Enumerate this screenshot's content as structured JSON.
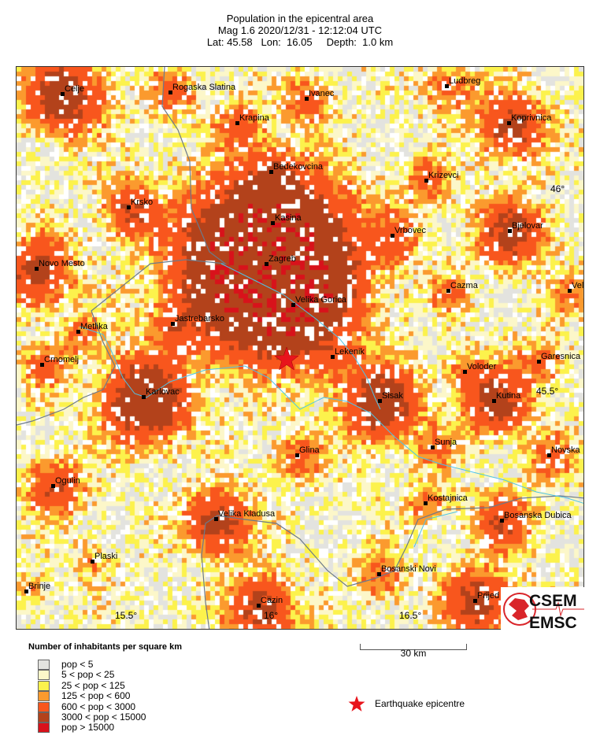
{
  "header": {
    "title": "Population in the epicentral area",
    "line2": "Mag 1.6  2020/12/31 - 12:12:04 UTC",
    "line3": "Lat: 45.58   Lon:  16.05     Depth:  1.0 km"
  },
  "map": {
    "cities": [
      "Celje",
      "Rogaska Slatina",
      "Ivanec",
      "Ludbreg",
      "Krapina",
      "Koprivnica",
      "Bedekovcina",
      "Krizevci",
      "Krsko",
      "Kasina",
      "Vrbovec",
      "Bjelovar",
      "Novo Mesto",
      "Zagreb",
      "Cazma",
      "Vel",
      "Velika Gorica",
      "Jastrebarsko",
      "Metlika",
      "Lekenik",
      "Crnomelj",
      "Garesnica",
      "Voloder",
      "Karlovac",
      "Kutina",
      "Sisak",
      "Sunja",
      "Novska",
      "Glina",
      "Ogulin",
      "Kostajnica",
      "Velika Kladusa",
      "Bosanska Dubica",
      "Plaski",
      "Bosanski Novi",
      "Brinje",
      "Cazin",
      "Prijed"
    ],
    "lat_labels": [
      "46°",
      "45.5°"
    ],
    "lon_labels": [
      "15.5°",
      "16°",
      "16.5°"
    ],
    "epicentre": {
      "lat": 45.58,
      "lon": 16.05,
      "color": "#e8141c"
    }
  },
  "legend": {
    "title": "Number of inhabitants per square km",
    "classes": [
      {
        "label": "pop < 5",
        "color": "#e3e3df"
      },
      {
        "label": "5 < pop < 25",
        "color": "#fcf7c9"
      },
      {
        "label": "25 < pop < 125",
        "color": "#fcf24c"
      },
      {
        "label": "125 < pop < 600",
        "color": "#fb9a2e"
      },
      {
        "label": "600 < pop < 3000",
        "color": "#f8561d"
      },
      {
        "label": "3000 < pop < 15000",
        "color": "#b3421b"
      },
      {
        "label": "pop > 15000",
        "color": "#d8121b"
      }
    ],
    "epicentre_label": "Earthquake epicentre"
  },
  "scale_bar": {
    "label": "30 km"
  },
  "logo": {
    "text1": "CSEM",
    "text2": "EMSC",
    "color": "#d9252a"
  }
}
